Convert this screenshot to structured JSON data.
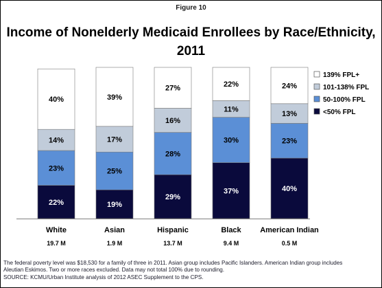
{
  "figure_label": "Figure 10",
  "footer": {
    "note_line1": "The federal poverty level was $18,530 for a family of three  in 2011. Asian group includes Pacific Islanders. American Indian group includes",
    "note_line2": "Aleutian Eskimos. Two or more races excluded. Data may not total 100% due to rounding.",
    "source": "SOURCE: KCMU/Urban Institute analysis of 2012 ASEC Supplement to the CPS."
  },
  "chart_data": {
    "type": "bar",
    "stacked": true,
    "percent_stacked": true,
    "title_line1": "Income of Nonelderly Medicaid Enrollees by Race/Ethnicity,",
    "title_line2": "2011",
    "categories": [
      "White",
      "Asian",
      "Hispanic",
      "Black",
      "American Indian"
    ],
    "category_totals": [
      "19.7 M",
      "1.9 M",
      "13.7 M",
      "9.4 M",
      "0.5 M"
    ],
    "series": [
      {
        "name": "<50% FPL",
        "values": [
          22,
          19,
          29,
          37,
          40
        ],
        "labels": [
          "22%",
          "19%",
          "29%",
          "37%",
          "40%"
        ],
        "color": "#0a0a3c",
        "text_color": "#ffffff"
      },
      {
        "name": "50-100% FPL",
        "values": [
          23,
          25,
          28,
          30,
          23
        ],
        "labels": [
          "23%",
          "25%",
          "28%",
          "30%",
          "23%"
        ],
        "color": "#5b8fd6",
        "text_color": "#000000"
      },
      {
        "name": "101-138% FPL",
        "values": [
          14,
          17,
          16,
          11,
          13
        ],
        "labels": [
          "14%",
          "17%",
          "16%",
          "11%",
          "13%"
        ],
        "color": "#c1ccda",
        "text_color": "#000000"
      },
      {
        "name": "139% FPL+",
        "values": [
          40,
          39,
          27,
          22,
          24
        ],
        "labels": [
          "40%",
          "39%",
          "27%",
          "22%",
          "24%"
        ],
        "color": "#ffffff",
        "text_color": "#000000"
      }
    ],
    "ylim": [
      0,
      100
    ],
    "legend_position": "right",
    "legend_order": [
      "139% FPL+",
      "101-138% FPL",
      "50-100% FPL",
      "<50% FPL"
    ]
  }
}
